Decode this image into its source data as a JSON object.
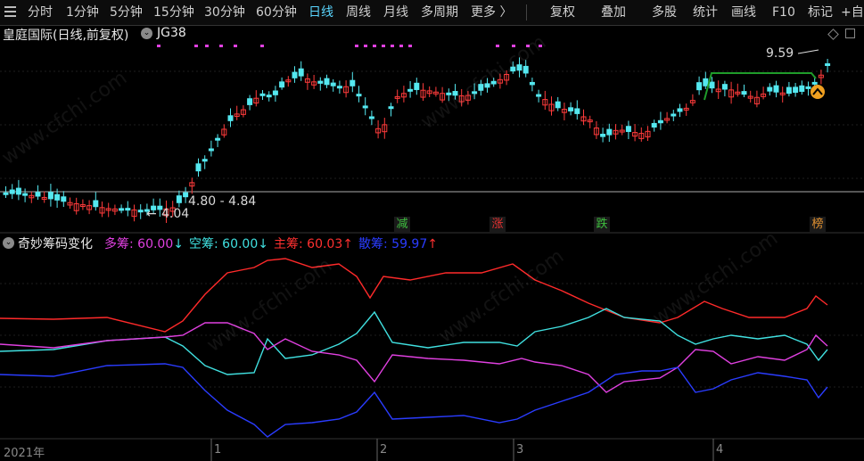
{
  "toolbar": {
    "items": [
      "分时",
      "1分钟",
      "5分钟",
      "15分钟",
      "30分钟",
      "60分钟",
      "日线",
      "周线",
      "月线",
      "多周期",
      "更多 〉"
    ],
    "active": "日线",
    "right_items": [
      "复权",
      "叠加",
      "多股",
      "统计",
      "画线",
      "F10",
      "标记",
      "+自"
    ]
  },
  "stock": {
    "title": "皇庭国际(日线,前复权)",
    "indicator": "JG38"
  },
  "main_chart": {
    "high_label": "9.59",
    "low_label": "4.04",
    "range_label": "4.80 - 4.84"
  },
  "tags": [
    {
      "text": "减",
      "color": "#3fbf3f"
    },
    {
      "text": "涨",
      "color": "#e03030"
    },
    {
      "text": "跌",
      "color": "#3fbf3f"
    },
    {
      "text": "榜",
      "color": "#e09030"
    }
  ],
  "indicator": {
    "name": "奇妙筹码变化",
    "items": [
      {
        "label": "多筹: ",
        "value": "60.00",
        "arrow": "↓",
        "color": "#e040e0"
      },
      {
        "label": "空筹: ",
        "value": "60.00",
        "arrow": "↓",
        "color": "#40e0e0"
      },
      {
        "label": "主筹: ",
        "value": "60.03",
        "arrow": "↑",
        "color": "#ff3030"
      },
      {
        "label": "散筹: ",
        "value": "59.97",
        "arrow": "↑",
        "color": "#2a3cff"
      }
    ]
  },
  "time_axis": [
    "2021年",
    "1",
    "2",
    "3",
    "4"
  ],
  "watermark": "www.cfchi.com",
  "colors": {
    "up": "#ff3b3b",
    "down": "#54e8f0",
    "magenta": "#e040e0",
    "green_line": "#1f9c2a"
  }
}
